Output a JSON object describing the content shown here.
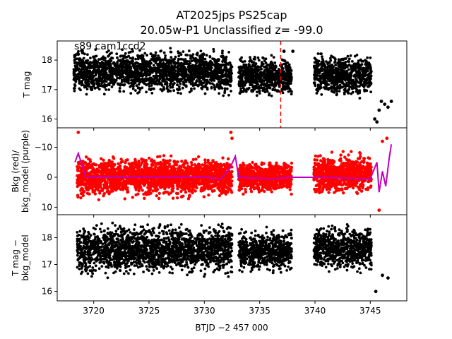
{
  "title_line1": "AT2025jps  PS25cap",
  "title_line2": "20.05w-P1 Unclassified z= -99.0",
  "annotation": "s89 cam1ccd2",
  "xlabel": "BTJD −2 457 000",
  "chart_data": [
    {
      "type": "scatter",
      "ylabel": "T mag",
      "ylim": [
        18.65,
        15.7
      ],
      "yticks": [
        "16",
        "17",
        "18"
      ],
      "xlim": [
        3716.7,
        3748.3
      ],
      "xticks": [
        "3720",
        "3725",
        "3730",
        "3735",
        "3740",
        "3745"
      ],
      "vline_x": 3736.9,
      "series": [
        {
          "color": "#000000",
          "segments": [
            [
              3718.2,
              3732.5,
              17.6,
              0.55
            ],
            [
              3733.1,
              3737.9,
              17.45,
              0.5
            ],
            [
              3739.9,
              3745.1,
              17.5,
              0.55
            ]
          ],
          "points": [
            [
              3718.3,
              18.15
            ],
            [
              3718.6,
              18.2
            ],
            [
              3719.0,
              18.25
            ],
            [
              3737.2,
              18.3
            ],
            [
              3738.0,
              18.3
            ],
            [
              3745.4,
              16.0
            ],
            [
              3745.6,
              15.9
            ],
            [
              3745.8,
              16.3
            ],
            [
              3746.0,
              16.6
            ],
            [
              3746.3,
              16.5
            ],
            [
              3746.6,
              16.4
            ],
            [
              3746.9,
              16.6
            ]
          ]
        }
      ]
    },
    {
      "type": "scatter",
      "ylabel": "Bkg (red)/\nbkg_model (purple)",
      "ylim": [
        -16.5,
        12.5
      ],
      "yticks": [
        "10",
        "0",
        "−10"
      ],
      "xlim": [
        3716.7,
        3748.3
      ],
      "series": [
        {
          "name": "Bkg",
          "color": "#ff0000",
          "segments": [
            [
              3718.5,
              3732.5,
              0.0,
              5.0
            ],
            [
              3733.1,
              3737.9,
              0.0,
              4.0
            ],
            [
              3739.9,
              3745.1,
              -1.0,
              5.0
            ]
          ],
          "points": [
            [
              3718.6,
              -15.0
            ],
            [
              3732.4,
              -15.0
            ],
            [
              3732.5,
              -13.0
            ],
            [
              3745.8,
              11.0
            ],
            [
              3746.1,
              -12.0
            ],
            [
              3746.5,
              -13.0
            ]
          ]
        },
        {
          "name": "bkg_model",
          "color": "#bf00bf",
          "points": [
            [
              3718.3,
              -5.0
            ],
            [
              3718.6,
              -8.0
            ],
            [
              3719.3,
              0.0
            ],
            [
              3725.0,
              0.0
            ],
            [
              3730.0,
              0.0
            ],
            [
              3731.5,
              0.5
            ],
            [
              3732.3,
              -3.0
            ],
            [
              3732.8,
              -7.0
            ],
            [
              3733.1,
              0.0
            ],
            [
              3736.0,
              0.5
            ],
            [
              3738.0,
              0.0
            ],
            [
              3740.0,
              0.0
            ],
            [
              3745.0,
              0.5
            ],
            [
              3745.6,
              -5.0
            ],
            [
              3745.8,
              5.0
            ],
            [
              3746.1,
              -2.0
            ],
            [
              3746.4,
              3.0
            ],
            [
              3746.7,
              -6.0
            ],
            [
              3746.9,
              -11.0
            ]
          ]
        }
      ]
    },
    {
      "type": "scatter",
      "ylabel": "T mag −\nbkg_model",
      "ylim": [
        18.85,
        15.65
      ],
      "yticks": [
        "16",
        "17",
        "18"
      ],
      "xlim": [
        3716.7,
        3748.3
      ],
      "series": [
        {
          "color": "#000000",
          "segments": [
            [
              3718.5,
              3732.5,
              17.55,
              0.7
            ],
            [
              3733.1,
              3737.9,
              17.5,
              0.6
            ],
            [
              3739.9,
              3745.1,
              17.6,
              0.65
            ]
          ],
          "points": [
            [
              3745.5,
              16.0
            ],
            [
              3746.1,
              16.6
            ],
            [
              3746.6,
              16.5
            ]
          ]
        }
      ]
    }
  ]
}
